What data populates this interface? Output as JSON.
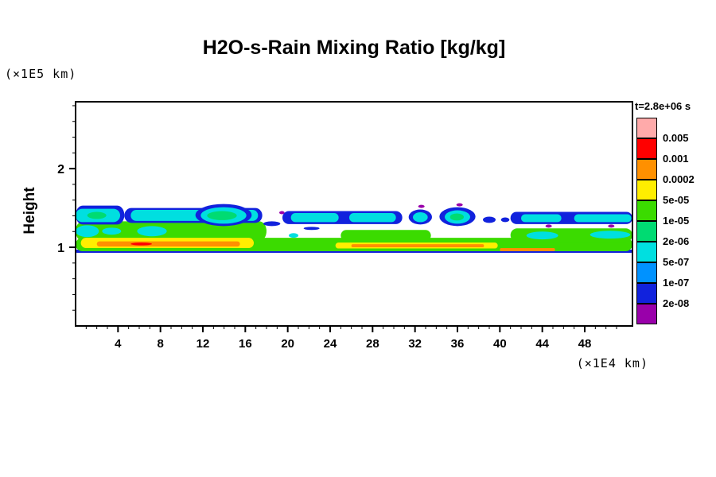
{
  "title": "H2O-s-Rain Mixing Ratio [kg/kg]",
  "x_axis": {
    "unit": "(×1E4 km)"
  },
  "y_axis": {
    "label": "Height",
    "unit": "(×1E5 km)"
  },
  "legend": {
    "title": "t=2.8e+06 s",
    "labels_top_to_bottom": [
      "0.005",
      "0.001",
      "0.0002",
      "5e-05",
      "1e-05",
      "2e-06",
      "5e-07",
      "1e-07",
      "2e-08"
    ],
    "colors_top_to_bottom": [
      "#ffaaaa",
      "#ff0000",
      "#ff9000",
      "#ffee00",
      "#3bdb00",
      "#00db72",
      "#00dfe0",
      "#0092ff",
      "#1122dd",
      "#9900aa"
    ]
  },
  "chart_data": {
    "type": "contour",
    "title": "H2O-s-Rain Mixing Ratio [kg/kg]",
    "time_label": "t=2.8e+06 s",
    "xlabel_unit": "(×1E4 km)",
    "ylabel": "Height",
    "ylabel_unit": "(×1E5 km)",
    "xlim": [
      0,
      52.5
    ],
    "ylim": [
      0,
      2.85
    ],
    "x_ticks": [
      4,
      8,
      12,
      16,
      20,
      24,
      28,
      32,
      36,
      40,
      44,
      48
    ],
    "y_ticks": [
      1,
      2
    ],
    "levels_ascending_kg_per_kg": [
      "2e-08",
      "1e-07",
      "5e-07",
      "2e-06",
      "1e-05",
      "5e-05",
      "0.0002",
      "0.001",
      "0.005"
    ],
    "structure_notes": "Shallow rain layer near height 1.0 (x1E5 km) spanning full domain, peak values 0.0002-0.001 kg/kg; broken cloud band of 1e-07 to 2e-06 kg/kg blobs near height 1.3-1.5; scattered 2e-08 specks.",
    "features": [
      {
        "s": "band",
        "x": [
          0,
          52.5
        ],
        "y": [
          0.93,
          0.97
        ],
        "c": 8
      },
      {
        "s": "band",
        "x": [
          0,
          18
        ],
        "y": [
          1.08,
          1.33
        ],
        "c": 4
      },
      {
        "s": "blob",
        "x": [
          0,
          2.2
        ],
        "y": [
          1.13,
          1.28
        ],
        "c": 6
      },
      {
        "s": "blob",
        "x": [
          2.5,
          4.3
        ],
        "y": [
          1.16,
          1.25
        ],
        "c": 6
      },
      {
        "s": "blob",
        "x": [
          5.8,
          8.6
        ],
        "y": [
          1.14,
          1.27
        ],
        "c": 6
      },
      {
        "s": "band",
        "x": [
          0,
          52.5
        ],
        "y": [
          0.95,
          1.12
        ],
        "c": 4
      },
      {
        "s": "band",
        "x": [
          25,
          33.5
        ],
        "y": [
          1.08,
          1.22
        ],
        "c": 4
      },
      {
        "s": "band",
        "x": [
          41,
          52.5
        ],
        "y": [
          1.07,
          1.24
        ],
        "c": 4
      },
      {
        "s": "blob",
        "x": [
          42.5,
          45.5
        ],
        "y": [
          1.1,
          1.2
        ],
        "c": 6
      },
      {
        "s": "blob",
        "x": [
          48.5,
          52.3
        ],
        "y": [
          1.11,
          1.21
        ],
        "c": 6
      },
      {
        "s": "band",
        "x": [
          0.5,
          16.8
        ],
        "y": [
          0.99,
          1.12
        ],
        "c": 3
      },
      {
        "s": "band",
        "x": [
          2,
          15.5
        ],
        "y": [
          1.01,
          1.075
        ],
        "c": 2
      },
      {
        "s": "blob",
        "x": [
          5.2,
          7.2
        ],
        "y": [
          1.025,
          1.06
        ],
        "c": 1
      },
      {
        "s": "band",
        "x": [
          24.5,
          39.8
        ],
        "y": [
          0.985,
          1.06
        ],
        "c": 3
      },
      {
        "s": "band",
        "x": [
          26,
          38.5
        ],
        "y": [
          1.0,
          1.04
        ],
        "c": 2
      },
      {
        "s": "band",
        "x": [
          40,
          45.2
        ],
        "y": [
          0.95,
          0.99
        ],
        "c": 2
      },
      {
        "s": "band",
        "x": [
          0,
          4.6
        ],
        "y": [
          1.29,
          1.53
        ],
        "c": 8
      },
      {
        "s": "band",
        "x": [
          0,
          4.2
        ],
        "y": [
          1.32,
          1.49
        ],
        "c": 6
      },
      {
        "s": "blob",
        "x": [
          1.1,
          2.9
        ],
        "y": [
          1.36,
          1.45
        ],
        "c": 5
      },
      {
        "s": "band",
        "x": [
          4.6,
          17.6
        ],
        "y": [
          1.31,
          1.5
        ],
        "c": 8
      },
      {
        "s": "band",
        "x": [
          5.2,
          17.2
        ],
        "y": [
          1.335,
          1.475
        ],
        "c": 6
      },
      {
        "s": "blob",
        "x": [
          11.3,
          16.6
        ],
        "y": [
          1.27,
          1.55
        ],
        "c": 8
      },
      {
        "s": "blob",
        "x": [
          11.8,
          16.1
        ],
        "y": [
          1.3,
          1.51
        ],
        "c": 6
      },
      {
        "s": "blob",
        "x": [
          12.4,
          15.2
        ],
        "y": [
          1.345,
          1.46
        ],
        "c": 5
      },
      {
        "s": "blob",
        "x": [
          17.7,
          19.3
        ],
        "y": [
          1.27,
          1.33
        ],
        "c": 8
      },
      {
        "s": "band",
        "x": [
          19.5,
          30.8
        ],
        "y": [
          1.295,
          1.46
        ],
        "c": 8
      },
      {
        "s": "band",
        "x": [
          20.3,
          24.8
        ],
        "y": [
          1.32,
          1.435
        ],
        "c": 6
      },
      {
        "s": "band",
        "x": [
          25.8,
          30.2
        ],
        "y": [
          1.32,
          1.435
        ],
        "c": 6
      },
      {
        "s": "blob",
        "x": [
          31.4,
          33.6
        ],
        "y": [
          1.29,
          1.48
        ],
        "c": 8
      },
      {
        "s": "blob",
        "x": [
          31.8,
          33.2
        ],
        "y": [
          1.32,
          1.445
        ],
        "c": 6
      },
      {
        "s": "blob",
        "x": [
          34.3,
          37.7
        ],
        "y": [
          1.27,
          1.51
        ],
        "c": 8
      },
      {
        "s": "blob",
        "x": [
          34.8,
          37.2
        ],
        "y": [
          1.3,
          1.47
        ],
        "c": 6
      },
      {
        "s": "blob",
        "x": [
          35.3,
          36.6
        ],
        "y": [
          1.34,
          1.43
        ],
        "c": 5
      },
      {
        "s": "blob",
        "x": [
          38.4,
          39.6
        ],
        "y": [
          1.31,
          1.39
        ],
        "c": 8
      },
      {
        "s": "blob",
        "x": [
          40.1,
          40.9
        ],
        "y": [
          1.32,
          1.38
        ],
        "c": 8
      },
      {
        "s": "band",
        "x": [
          41,
          52.5
        ],
        "y": [
          1.295,
          1.45
        ],
        "c": 8
      },
      {
        "s": "band",
        "x": [
          42,
          45.8
        ],
        "y": [
          1.32,
          1.42
        ],
        "c": 6
      },
      {
        "s": "band",
        "x": [
          47,
          52.4
        ],
        "y": [
          1.32,
          1.42
        ],
        "c": 6
      },
      {
        "s": "blob",
        "x": [
          20.1,
          21
        ],
        "y": [
          1.12,
          1.18
        ],
        "c": 6
      },
      {
        "s": "blob",
        "x": [
          21.5,
          23
        ],
        "y": [
          1.22,
          1.26
        ],
        "c": 8
      },
      {
        "s": "blob",
        "x": [
          19.2,
          19.7
        ],
        "y": [
          1.42,
          1.46
        ],
        "c": 9
      },
      {
        "s": "blob",
        "x": [
          32.3,
          32.9
        ],
        "y": [
          1.5,
          1.54
        ],
        "c": 9
      },
      {
        "s": "blob",
        "x": [
          35.9,
          36.5
        ],
        "y": [
          1.52,
          1.56
        ],
        "c": 9
      },
      {
        "s": "blob",
        "x": [
          44.3,
          44.9
        ],
        "y": [
          1.25,
          1.29
        ],
        "c": 9
      },
      {
        "s": "blob",
        "x": [
          50.2,
          50.8
        ],
        "y": [
          1.25,
          1.29
        ],
        "c": 9
      }
    ]
  }
}
